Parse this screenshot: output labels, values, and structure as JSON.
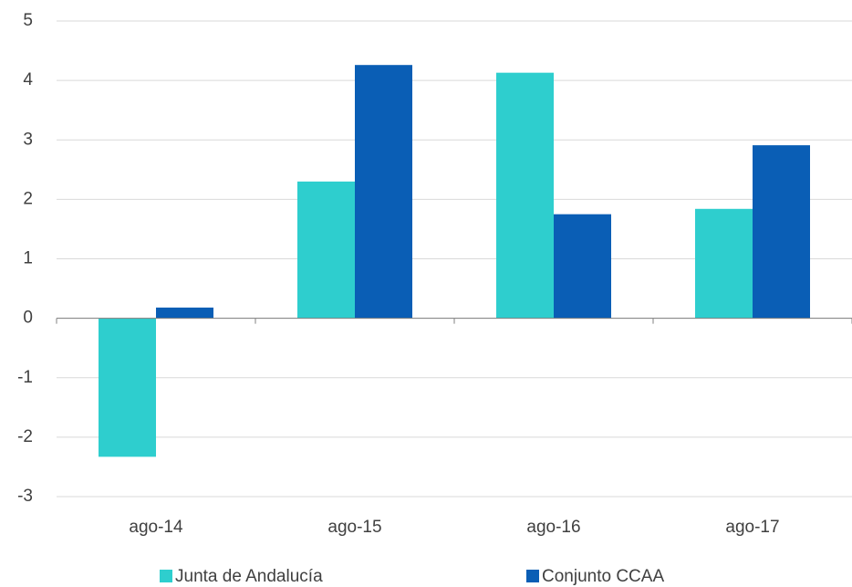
{
  "chart_data": {
    "type": "bar",
    "categories": [
      "ago-14",
      "ago-15",
      "ago-16",
      "ago-17"
    ],
    "series": [
      {
        "name": "Junta de Andalucía",
        "color": "#2ecece",
        "values": [
          -2.33,
          2.3,
          4.13,
          1.84
        ]
      },
      {
        "name": "Conjunto CCAA",
        "color": "#0a5eb5",
        "values": [
          0.18,
          4.26,
          1.75,
          2.91
        ]
      }
    ],
    "ylim": [
      -3,
      5
    ],
    "yticks": [
      -3,
      -2,
      -1,
      0,
      1,
      2,
      3,
      4,
      5
    ],
    "grid": true,
    "legend": "bottom"
  }
}
